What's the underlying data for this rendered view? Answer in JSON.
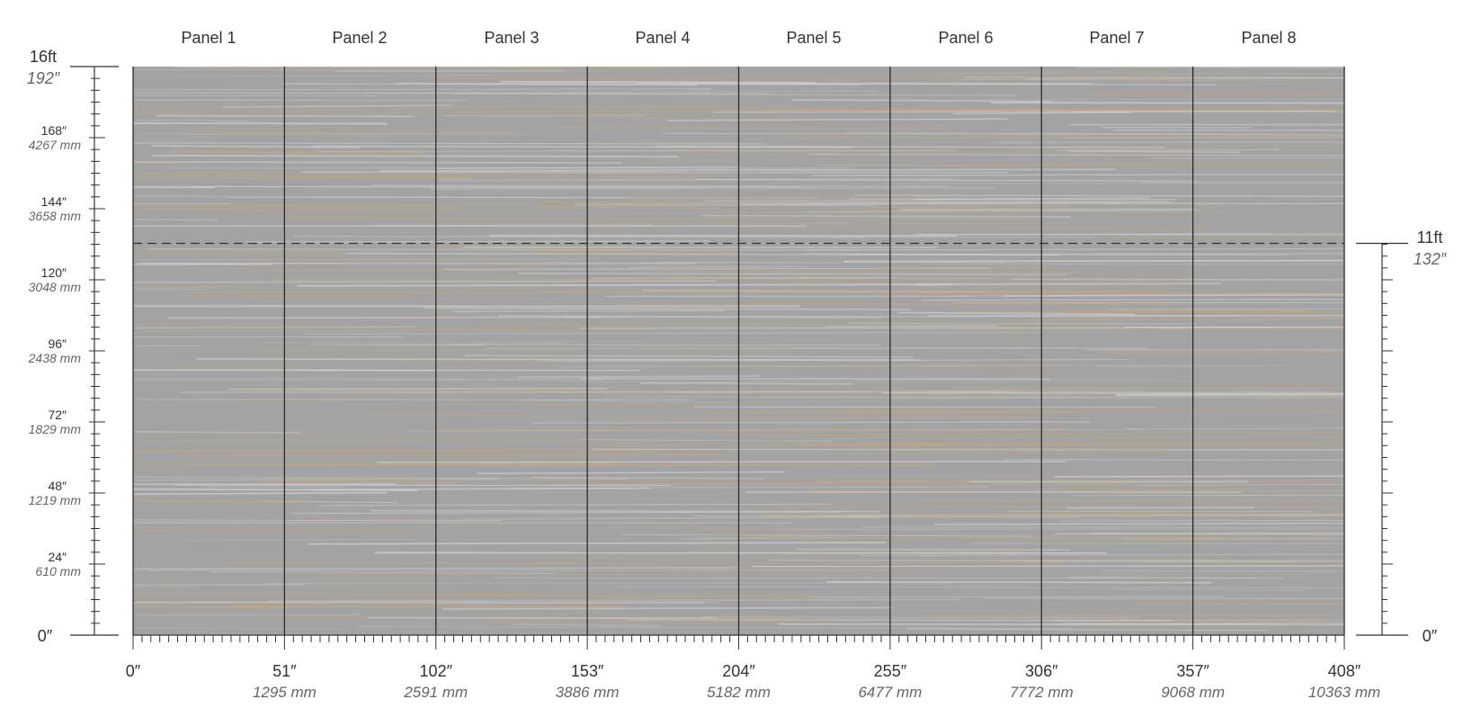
{
  "panels": [
    "Panel 1",
    "Panel 2",
    "Panel 3",
    "Panel 4",
    "Panel 5",
    "Panel 6",
    "Panel 7",
    "Panel 8"
  ],
  "width_axis": {
    "max_inches": 408,
    "labels": [
      {
        "inches": 0,
        "in_label": "0″",
        "mm_label": ""
      },
      {
        "inches": 51,
        "in_label": "51″",
        "mm_label": "1295 mm"
      },
      {
        "inches": 102,
        "in_label": "102″",
        "mm_label": "2591 mm"
      },
      {
        "inches": 153,
        "in_label": "153″",
        "mm_label": "3886 mm"
      },
      {
        "inches": 204,
        "in_label": "204″",
        "mm_label": "5182 mm"
      },
      {
        "inches": 255,
        "in_label": "255″",
        "mm_label": "6477 mm"
      },
      {
        "inches": 306,
        "in_label": "306″",
        "mm_label": "7772 mm"
      },
      {
        "inches": 357,
        "in_label": "357″",
        "mm_label": "9068 mm"
      },
      {
        "inches": 408,
        "in_label": "408″",
        "mm_label": "10363 mm"
      }
    ]
  },
  "height_axis": {
    "max_inches": 192,
    "top_ft_label": "16ft",
    "top_in_label": "192″",
    "zero_label": "0″",
    "labels": [
      {
        "inches": 168,
        "in_label": "168″",
        "mm_label": "4267 mm"
      },
      {
        "inches": 144,
        "in_label": "144″",
        "mm_label": "3658 mm"
      },
      {
        "inches": 120,
        "in_label": "120″",
        "mm_label": "3048 mm"
      },
      {
        "inches": 96,
        "in_label": "96″",
        "mm_label": "2438 mm"
      },
      {
        "inches": 72,
        "in_label": "72″",
        "mm_label": "1829 mm"
      },
      {
        "inches": 48,
        "in_label": "48″",
        "mm_label": "1219 mm"
      },
      {
        "inches": 24,
        "in_label": "24″",
        "mm_label": "610 mm"
      }
    ]
  },
  "right_axis": {
    "marker_inches": 132,
    "ft_label": "11ft",
    "in_label": "132″",
    "zero_label": "0″"
  },
  "colors": {
    "surface": "#a3a3a3",
    "streak_light": "#d4d4d4",
    "streak_warm": "#c9a87a",
    "divider": "#2a2a2a"
  }
}
